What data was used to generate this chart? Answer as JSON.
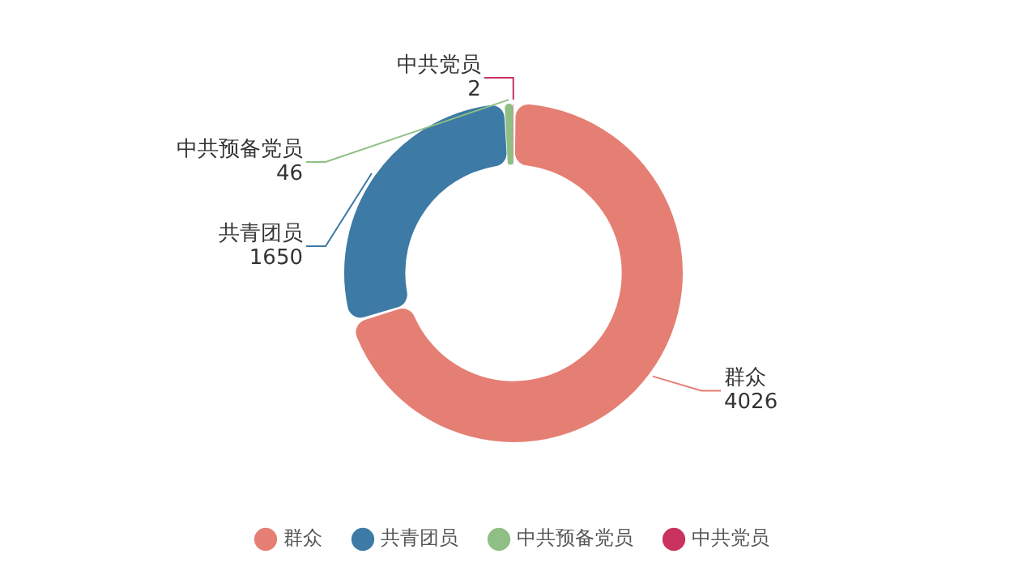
{
  "chart_data": {
    "type": "donut",
    "categories": [
      "群众",
      "共青团员",
      "中共预备党员",
      "中共党员"
    ],
    "values": [
      4026,
      1650,
      46,
      2
    ],
    "colors": [
      "#e57f74",
      "#3d7aa5",
      "#8fbf84",
      "#c9325f"
    ],
    "legend": "bottom",
    "data_labels": true
  }
}
